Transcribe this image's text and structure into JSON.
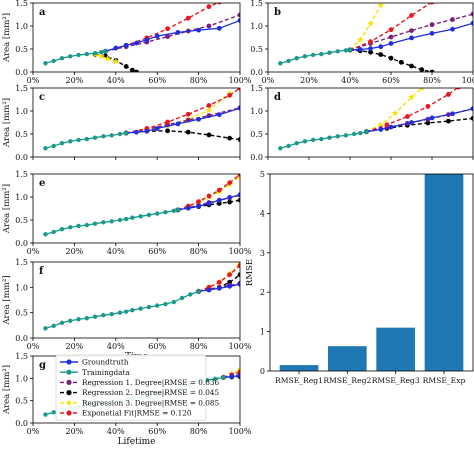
{
  "chart_data": {
    "panels": [
      {
        "type": "line",
        "panel_label": "a",
        "xlabel": "",
        "ylabel": "Area [mm²]",
        "xlim": [
          0,
          100
        ],
        "ylim": [
          0,
          1.5
        ],
        "xticks": [
          "0%",
          "20%",
          "40%",
          "60%",
          "80%",
          "100%"
        ],
        "yticks": [
          "0.0",
          "0.5",
          "1.0",
          "1.5"
        ],
        "show_xticklabels": true,
        "cutoff": 35,
        "training": {
          "x": [
            6,
            10,
            14,
            18,
            22,
            26,
            30,
            33,
            35
          ],
          "y": [
            0.19,
            0.24,
            0.3,
            0.34,
            0.37,
            0.39,
            0.41,
            0.43,
            0.45
          ]
        },
        "ground": {
          "x": [
            35,
            40,
            45,
            50,
            55,
            60,
            70,
            80,
            90,
            100
          ],
          "y": [
            0.45,
            0.52,
            0.58,
            0.63,
            0.7,
            0.78,
            0.86,
            0.91,
            0.95,
            1.12
          ]
        },
        "reg1": {
          "x": [
            35,
            45,
            55,
            65,
            75,
            85,
            100
          ],
          "y": [
            0.45,
            0.55,
            0.65,
            0.77,
            0.89,
            1.0,
            1.24
          ]
        },
        "reg2": {
          "x": [
            30,
            35,
            40,
            45,
            48,
            50
          ],
          "y": [
            0.38,
            0.35,
            0.25,
            0.12,
            0.04,
            0.0
          ]
        },
        "reg3": {
          "x": [
            30,
            33,
            36,
            40
          ],
          "y": [
            0.38,
            0.34,
            0.29,
            0.23
          ]
        },
        "exp": {
          "x": [
            35,
            45,
            55,
            65,
            75,
            85,
            90
          ],
          "y": [
            0.45,
            0.58,
            0.74,
            0.94,
            1.17,
            1.42,
            1.52
          ]
        }
      },
      {
        "type": "line",
        "panel_label": "b",
        "xlabel": "",
        "ylabel": "",
        "xlim": [
          0,
          100
        ],
        "ylim": [
          0,
          1.5
        ],
        "xticks": [
          "0%",
          "20%",
          "40%",
          "60%",
          "80%",
          "100%"
        ],
        "yticks": [
          "0.0",
          "0.5",
          "1.0",
          "1.5"
        ],
        "show_xticklabels": true,
        "cutoff": 40,
        "training": {
          "x": [
            6,
            10,
            14,
            18,
            22,
            26,
            30,
            34,
            38,
            40
          ],
          "y": [
            0.19,
            0.24,
            0.3,
            0.34,
            0.37,
            0.39,
            0.42,
            0.45,
            0.47,
            0.48
          ]
        },
        "ground": {
          "x": [
            40,
            45,
            50,
            55,
            60,
            70,
            80,
            90,
            100
          ],
          "y": [
            0.48,
            0.49,
            0.51,
            0.55,
            0.62,
            0.74,
            0.84,
            0.93,
            1.06
          ]
        },
        "reg1": {
          "x": [
            40,
            50,
            60,
            70,
            80,
            90,
            100
          ],
          "y": [
            0.48,
            0.62,
            0.76,
            0.9,
            1.03,
            1.14,
            1.26
          ]
        },
        "reg2": {
          "x": [
            40,
            45,
            50,
            55,
            60,
            65,
            70,
            75,
            80
          ],
          "y": [
            0.48,
            0.46,
            0.43,
            0.38,
            0.3,
            0.21,
            0.13,
            0.05,
            0.0
          ]
        },
        "reg3": {
          "x": [
            40,
            45,
            50,
            55
          ],
          "y": [
            0.48,
            0.7,
            1.05,
            1.45
          ]
        },
        "exp": {
          "x": [
            40,
            50,
            60,
            70,
            80
          ],
          "y": [
            0.48,
            0.66,
            0.92,
            1.23,
            1.52
          ]
        }
      },
      {
        "type": "line",
        "panel_label": "c",
        "xlabel": "",
        "ylabel": "Area [mm²]",
        "xlim": [
          0,
          100
        ],
        "ylim": [
          0,
          1.5
        ],
        "xticks": [
          "0%",
          "20%",
          "40%",
          "60%",
          "80%",
          "100%"
        ],
        "yticks": [
          "0.0",
          "0.5",
          "1.0",
          "1.5"
        ],
        "show_xticklabels": false,
        "cutoff": 45,
        "training": {
          "x": [
            6,
            10,
            14,
            18,
            22,
            26,
            30,
            34,
            38,
            42,
            45
          ],
          "y": [
            0.19,
            0.24,
            0.3,
            0.34,
            0.37,
            0.39,
            0.42,
            0.45,
            0.47,
            0.5,
            0.52
          ]
        },
        "ground": {
          "x": [
            45,
            50,
            55,
            60,
            70,
            80,
            90,
            100
          ],
          "y": [
            0.52,
            0.54,
            0.56,
            0.62,
            0.72,
            0.82,
            0.92,
            1.06
          ]
        },
        "reg1": {
          "x": [
            45,
            55,
            65,
            75,
            85,
            100
          ],
          "y": [
            0.52,
            0.6,
            0.7,
            0.8,
            0.9,
            1.07
          ]
        },
        "reg2": {
          "x": [
            45,
            55,
            65,
            75,
            85,
            95,
            100
          ],
          "y": [
            0.52,
            0.56,
            0.57,
            0.54,
            0.48,
            0.41,
            0.38
          ]
        },
        "reg3": {
          "x": [
            45,
            55,
            65,
            75,
            85,
            95
          ],
          "y": [
            0.52,
            0.6,
            0.68,
            0.82,
            1.02,
            1.38
          ]
        },
        "exp": {
          "x": [
            45,
            55,
            65,
            75,
            85,
            95,
            100
          ],
          "y": [
            0.52,
            0.62,
            0.76,
            0.93,
            1.12,
            1.34,
            1.5
          ]
        }
      },
      {
        "type": "line",
        "panel_label": "d",
        "xlabel": "",
        "ylabel": "",
        "xlim": [
          0,
          100
        ],
        "ylim": [
          0,
          1.5
        ],
        "xticks": [
          "0%",
          "20%",
          "40%",
          "60%",
          "80%",
          "100%"
        ],
        "yticks": [
          "0.0",
          "0.5",
          "1.0",
          "1.5"
        ],
        "show_xticklabels": false,
        "cutoff": 48,
        "training": {
          "x": [
            6,
            10,
            14,
            18,
            22,
            26,
            30,
            34,
            38,
            42,
            45,
            48
          ],
          "y": [
            0.19,
            0.24,
            0.3,
            0.34,
            0.37,
            0.39,
            0.42,
            0.45,
            0.47,
            0.5,
            0.52,
            0.55
          ]
        },
        "ground": {
          "x": [
            48,
            55,
            60,
            70,
            80,
            90,
            100
          ],
          "y": [
            0.55,
            0.6,
            0.65,
            0.75,
            0.85,
            0.94,
            1.05
          ]
        },
        "reg1": {
          "x": [
            48,
            58,
            68,
            78,
            88,
            100
          ],
          "y": [
            0.55,
            0.64,
            0.73,
            0.82,
            0.92,
            1.05
          ]
        },
        "reg2": {
          "x": [
            48,
            58,
            68,
            78,
            88,
            100
          ],
          "y": [
            0.55,
            0.62,
            0.69,
            0.74,
            0.78,
            0.84
          ]
        },
        "reg3": {
          "x": [
            48,
            55,
            62,
            70,
            75
          ],
          "y": [
            0.55,
            0.7,
            0.95,
            1.3,
            1.5
          ]
        },
        "exp": {
          "x": [
            48,
            58,
            68,
            78,
            88,
            93
          ],
          "y": [
            0.55,
            0.7,
            0.88,
            1.1,
            1.36,
            1.52
          ]
        }
      },
      {
        "type": "line",
        "panel_label": "e",
        "xlabel": "",
        "ylabel": "Area [mm²]",
        "xlim": [
          0,
          100
        ],
        "ylim": [
          0,
          1.5
        ],
        "xticks": [
          "0%",
          "20%",
          "40%",
          "60%",
          "80%",
          "100%"
        ],
        "yticks": [
          "0.0",
          "0.5",
          "1.0",
          "1.5"
        ],
        "show_xticklabels": true,
        "cutoff": 70,
        "training": {
          "x": [
            6,
            10,
            14,
            18,
            22,
            26,
            30,
            34,
            38,
            42,
            45,
            48,
            52,
            56,
            60,
            64,
            68,
            70
          ],
          "y": [
            0.19,
            0.24,
            0.3,
            0.34,
            0.37,
            0.39,
            0.42,
            0.45,
            0.47,
            0.5,
            0.52,
            0.55,
            0.58,
            0.61,
            0.64,
            0.67,
            0.7,
            0.72
          ]
        },
        "ground": {
          "x": [
            70,
            75,
            80,
            85,
            90,
            95,
            100
          ],
          "y": [
            0.72,
            0.76,
            0.8,
            0.86,
            0.93,
            0.99,
            1.05
          ]
        },
        "reg1": {
          "x": [
            70,
            75,
            80,
            85,
            90,
            95,
            100
          ],
          "y": [
            0.72,
            0.77,
            0.82,
            0.88,
            0.93,
            0.98,
            1.04
          ]
        },
        "reg2": {
          "x": [
            70,
            75,
            80,
            85,
            90,
            95,
            100
          ],
          "y": [
            0.72,
            0.76,
            0.79,
            0.83,
            0.86,
            0.89,
            0.93
          ]
        },
        "reg3": {
          "x": [
            70,
            75,
            80,
            85,
            90,
            95,
            100
          ],
          "y": [
            0.72,
            0.8,
            0.89,
            1.0,
            1.12,
            1.28,
            1.45
          ]
        },
        "exp": {
          "x": [
            70,
            75,
            80,
            85,
            90,
            95,
            100
          ],
          "y": [
            0.72,
            0.8,
            0.9,
            1.02,
            1.15,
            1.31,
            1.49
          ]
        }
      },
      {
        "type": "line",
        "panel_label": "f",
        "xlabel": "Time",
        "ylabel": "Area [mm²]",
        "xlim": [
          0,
          100
        ],
        "ylim": [
          0,
          1.5
        ],
        "xticks": [
          "0%",
          "20%",
          "40%",
          "60%",
          "80%",
          "100%"
        ],
        "yticks": [
          "0.0",
          "0.5",
          "1.0",
          "1.5"
        ],
        "show_xticklabels": true,
        "cutoff": 80,
        "training": {
          "x": [
            6,
            10,
            14,
            18,
            22,
            26,
            30,
            34,
            38,
            42,
            45,
            48,
            52,
            56,
            60,
            64,
            68,
            72,
            76,
            80
          ],
          "y": [
            0.19,
            0.24,
            0.3,
            0.34,
            0.37,
            0.39,
            0.42,
            0.45,
            0.47,
            0.5,
            0.52,
            0.55,
            0.58,
            0.61,
            0.64,
            0.67,
            0.71,
            0.79,
            0.86,
            0.92
          ]
        },
        "ground": {
          "x": [
            80,
            85,
            90,
            95,
            100
          ],
          "y": [
            0.92,
            0.95,
            0.98,
            1.02,
            1.06
          ]
        },
        "reg1": {
          "x": [
            80,
            85,
            90,
            95,
            100
          ],
          "y": [
            0.92,
            0.96,
            1.0,
            1.04,
            1.08
          ]
        },
        "reg2": {
          "x": [
            80,
            85,
            90,
            95,
            100
          ],
          "y": [
            0.92,
            0.95,
            1.0,
            1.1,
            1.25
          ]
        },
        "reg3": {
          "x": [
            80,
            85,
            90,
            95,
            100
          ],
          "y": [
            0.92,
            1.0,
            1.1,
            1.27,
            1.48
          ]
        },
        "exp": {
          "x": [
            80,
            85,
            90,
            95,
            100
          ],
          "y": [
            0.92,
            1.0,
            1.1,
            1.25,
            1.43
          ]
        }
      },
      {
        "type": "line",
        "panel_label": "g",
        "xlabel": "Lifetime",
        "ylabel": "Area [mm²]",
        "xlim": [
          0,
          100
        ],
        "ylim": [
          0,
          1.5
        ],
        "xticks": [
          "0%",
          "20%",
          "40%",
          "60%",
          "80%",
          "100%"
        ],
        "yticks": [
          "0.0",
          "0.5",
          "1.0",
          "1.5"
        ],
        "show_xticklabels": true,
        "cutoff": 92,
        "training": {
          "x": [
            6,
            10,
            14,
            18,
            22,
            26,
            30,
            34,
            38,
            42,
            45,
            48,
            52,
            56,
            60,
            64,
            68,
            72,
            76,
            80,
            84,
            88,
            92
          ],
          "y": [
            0.19,
            0.24,
            0.3,
            0.34,
            0.37,
            0.39,
            0.42,
            0.45,
            0.47,
            0.5,
            0.52,
            0.55,
            0.58,
            0.61,
            0.64,
            0.67,
            0.71,
            0.79,
            0.86,
            0.92,
            0.96,
            0.99,
            1.02
          ]
        },
        "ground": {
          "x": [
            92,
            96,
            100
          ],
          "y": [
            1.02,
            1.04,
            1.06
          ]
        },
        "reg1": {
          "x": [
            92,
            96,
            100
          ],
          "y": [
            1.02,
            1.05,
            1.08
          ]
        },
        "reg2": {
          "x": [
            92,
            96,
            100
          ],
          "y": [
            1.02,
            1.03,
            1.04
          ]
        },
        "reg3": {
          "x": [
            92,
            96,
            100
          ],
          "y": [
            1.02,
            1.1,
            1.2
          ]
        },
        "exp": {
          "x": [
            92,
            96,
            100
          ],
          "y": [
            1.02,
            1.08,
            1.14
          ]
        }
      },
      {
        "type": "bar",
        "categories": [
          "RMSE_Reg1",
          "RMSE_Reg2",
          "RMSE_Reg3",
          "RMSE_Exp"
        ],
        "values": [
          0.15,
          0.63,
          1.1,
          5.0
        ],
        "ylabel": "RMSE",
        "ylim": [
          0,
          5
        ],
        "yticks": [
          "0",
          "1",
          "2",
          "3",
          "4",
          "5"
        ],
        "color": "#1f77b4"
      }
    ],
    "legend": [
      {
        "label": "Groundtruth",
        "color": "#1f2fe0",
        "dashed": false,
        "marker": "circle"
      },
      {
        "label": "Trainingdata",
        "color": "#1a9a8a",
        "dashed": false,
        "marker": "circle"
      },
      {
        "label": "Regression 1. Degree|RMSE = 0.036",
        "color": "#7b1f7d",
        "dashed": true,
        "marker": "circle"
      },
      {
        "label": "Regression 2. Degree|RMSE = 0.045",
        "color": "#000000",
        "dashed": true,
        "marker": "circle"
      },
      {
        "label": "Regression 3. Degree|RMSE = 0.085",
        "color": "#f5e400",
        "dashed": true,
        "marker": "star"
      },
      {
        "label": "Exponetial Fit|RMSE = 0.120",
        "color": "#e8191e",
        "dashed": true,
        "marker": "circle"
      }
    ],
    "legend_placement": "inside panel g, top-left"
  }
}
